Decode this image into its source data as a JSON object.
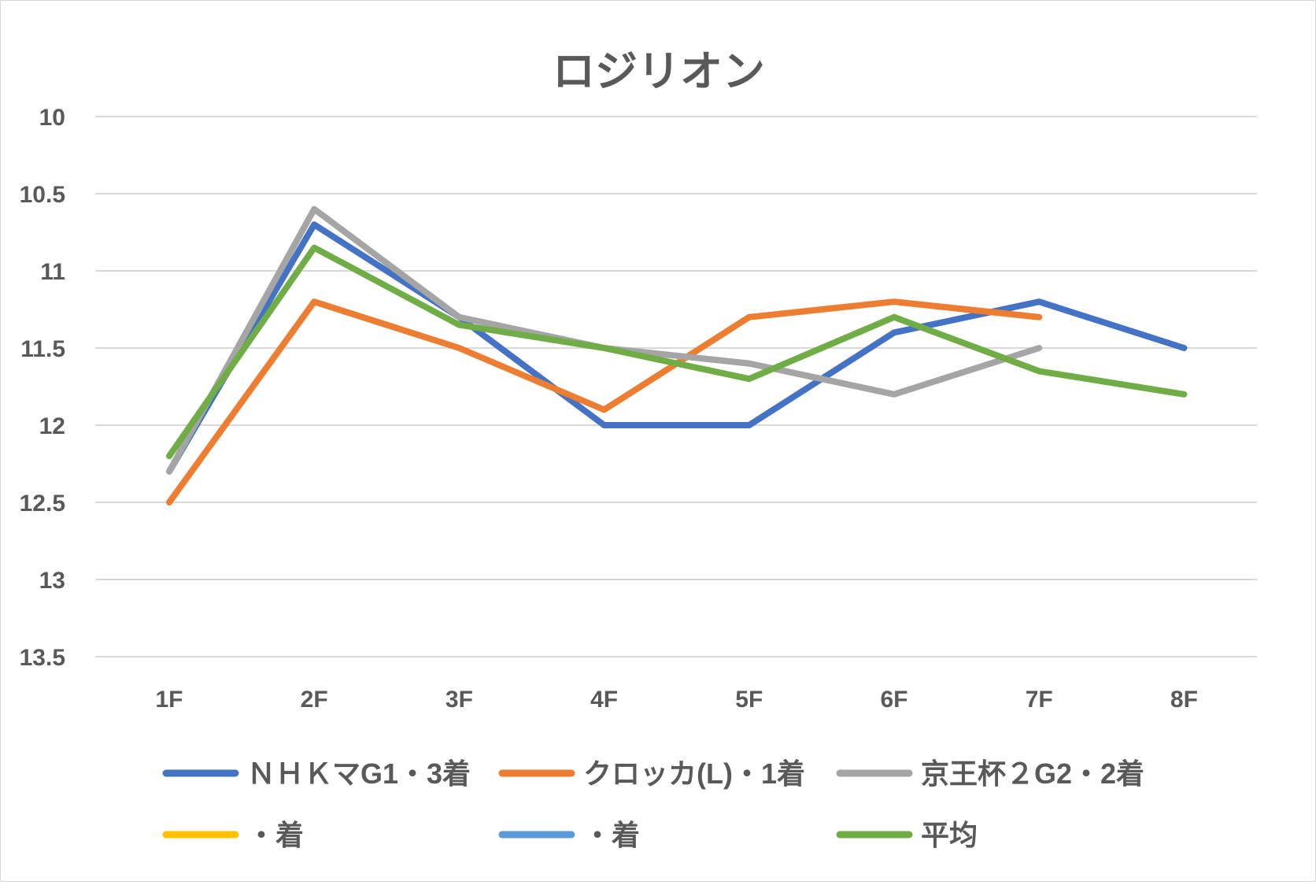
{
  "chart_data": {
    "type": "line",
    "title": "ロジリオン",
    "categories": [
      "1F",
      "2F",
      "3F",
      "4F",
      "5F",
      "6F",
      "7F",
      "8F"
    ],
    "y_ticks": [
      "10",
      "10.5",
      "11",
      "11.5",
      "12",
      "12.5",
      "13",
      "13.5"
    ],
    "ylim": [
      10,
      13.5
    ],
    "y_reversed": true,
    "grid": true,
    "legend_position": "bottom",
    "series": [
      {
        "name": "ＮＨＫマG1・3着",
        "color": "#4472c4",
        "values": [
          12.3,
          10.7,
          11.3,
          12.0,
          12.0,
          11.4,
          11.2,
          11.5
        ]
      },
      {
        "name": "クロッカ(L)・1着",
        "color": "#ed7d31",
        "values": [
          12.5,
          11.2,
          11.5,
          11.9,
          11.3,
          11.2,
          11.3,
          null
        ]
      },
      {
        "name": "京王杯２G2・2着",
        "color": "#a5a5a5",
        "values": [
          12.3,
          10.6,
          11.3,
          11.5,
          11.6,
          11.8,
          11.5,
          null
        ]
      },
      {
        "name": "・着",
        "color": "#ffc000",
        "values": [
          null,
          null,
          null,
          null,
          null,
          null,
          null,
          null
        ]
      },
      {
        "name": "・着",
        "color": "#5b9bd5",
        "values": [
          null,
          null,
          null,
          null,
          null,
          null,
          null,
          null
        ]
      },
      {
        "name": "平均",
        "color": "#70ad47",
        "values": [
          12.2,
          10.85,
          11.35,
          11.5,
          11.7,
          11.3,
          11.65,
          11.8
        ]
      }
    ]
  }
}
